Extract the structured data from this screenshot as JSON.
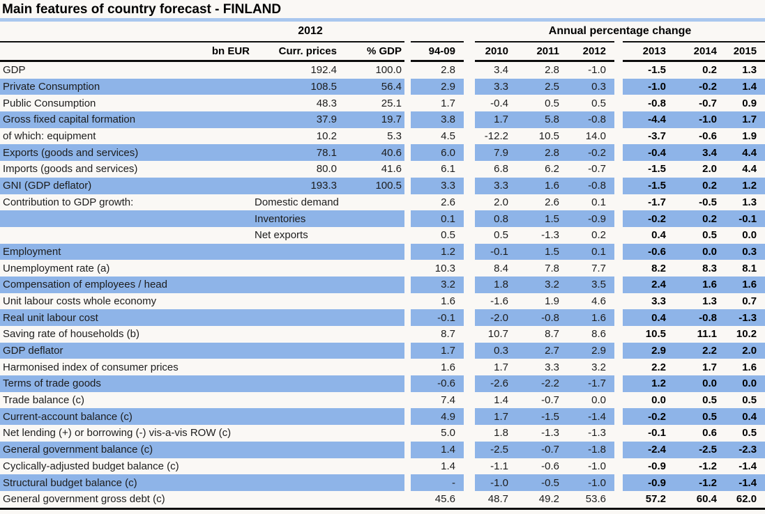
{
  "title": "Main features of country forecast - FINLAND",
  "colors": {
    "stripe_blue": "#8eb4e8",
    "title_rule_blue": "#a9c7ee",
    "rule_black": "#0d0d0d",
    "background": "#faf8f5"
  },
  "header": {
    "group_2012": "2012",
    "group_apc": "Annual percentage change",
    "col_bn_eur": "bn EUR",
    "col_curr_prices": "Curr. prices",
    "col_pct_gdp": "% GDP",
    "col_9409": "94-09",
    "years": [
      "2010",
      "2011",
      "2012",
      "2013",
      "2014",
      "2015"
    ]
  },
  "table": {
    "rows": [
      {
        "label": "GDP",
        "curr": "192.4",
        "gdp": "100.0",
        "v9409": "2.8",
        "y2010": "3.4",
        "y2011": "2.8",
        "y2012": "-1.0",
        "y2013": "-1.5",
        "y2014": "0.2",
        "y2015": "1.3"
      },
      {
        "label": "Private Consumption",
        "curr": "108.5",
        "gdp": "56.4",
        "v9409": "2.9",
        "y2010": "3.3",
        "y2011": "2.5",
        "y2012": "0.3",
        "y2013": "-1.0",
        "y2014": "-0.2",
        "y2015": "1.4"
      },
      {
        "label": "Public Consumption",
        "curr": "48.3",
        "gdp": "25.1",
        "v9409": "1.7",
        "y2010": "-0.4",
        "y2011": "0.5",
        "y2012": "0.5",
        "y2013": "-0.8",
        "y2014": "-0.7",
        "y2015": "0.9"
      },
      {
        "label": "Gross fixed capital formation",
        "curr": "37.9",
        "gdp": "19.7",
        "v9409": "3.8",
        "y2010": "1.7",
        "y2011": "5.8",
        "y2012": "-0.8",
        "y2013": "-4.4",
        "y2014": "-1.0",
        "y2015": "1.7"
      },
      {
        "label": "of which: equipment",
        "curr": "10.2",
        "gdp": "5.3",
        "v9409": "4.5",
        "y2010": "-12.2",
        "y2011": "10.5",
        "y2012": "14.0",
        "y2013": "-3.7",
        "y2014": "-0.6",
        "y2015": "1.9"
      },
      {
        "label": "Exports (goods and services)",
        "curr": "78.1",
        "gdp": "40.6",
        "v9409": "6.0",
        "y2010": "7.9",
        "y2011": "2.8",
        "y2012": "-0.2",
        "y2013": "-0.4",
        "y2014": "3.4",
        "y2015": "4.4"
      },
      {
        "label": "Imports (goods and services)",
        "curr": "80.0",
        "gdp": "41.6",
        "v9409": "6.1",
        "y2010": "6.8",
        "y2011": "6.2",
        "y2012": "-0.7",
        "y2013": "-1.5",
        "y2014": "2.0",
        "y2015": "4.4"
      },
      {
        "label": "GNI (GDP deflator)",
        "curr": "193.3",
        "gdp": "100.5",
        "v9409": "3.3",
        "y2010": "3.3",
        "y2011": "1.6",
        "y2012": "-0.8",
        "y2013": "-1.5",
        "y2014": "0.2",
        "y2015": "1.2"
      },
      {
        "label": "Contribution to GDP growth:",
        "sublabel": "Domestic demand",
        "v9409": "2.6",
        "y2010": "2.0",
        "y2011": "2.6",
        "y2012": "0.1",
        "y2013": "-1.7",
        "y2014": "-0.5",
        "y2015": "1.3"
      },
      {
        "label": "",
        "sublabel": "Inventories",
        "v9409": "0.1",
        "y2010": "0.8",
        "y2011": "1.5",
        "y2012": "-0.9",
        "y2013": "-0.2",
        "y2014": "0.2",
        "y2015": "-0.1"
      },
      {
        "label": "",
        "sublabel": "Net exports",
        "v9409": "0.5",
        "y2010": "0.5",
        "y2011": "-1.3",
        "y2012": "0.2",
        "y2013": "0.4",
        "y2014": "0.5",
        "y2015": "0.0"
      },
      {
        "label": "Employment",
        "curr": "",
        "gdp": "",
        "v9409": "1.2",
        "y2010": "-0.1",
        "y2011": "1.5",
        "y2012": "0.1",
        "y2013": "-0.6",
        "y2014": "0.0",
        "y2015": "0.3"
      },
      {
        "label": "Unemployment rate (a)",
        "curr": "",
        "gdp": "",
        "v9409": "10.3",
        "y2010": "8.4",
        "y2011": "7.8",
        "y2012": "7.7",
        "y2013": "8.2",
        "y2014": "8.3",
        "y2015": "8.1"
      },
      {
        "label": "Compensation of employees / head",
        "curr": "",
        "gdp": "",
        "v9409": "3.2",
        "y2010": "1.8",
        "y2011": "3.2",
        "y2012": "3.5",
        "y2013": "2.4",
        "y2014": "1.6",
        "y2015": "1.6"
      },
      {
        "label": "Unit labour costs whole economy",
        "curr": "",
        "gdp": "",
        "v9409": "1.6",
        "y2010": "-1.6",
        "y2011": "1.9",
        "y2012": "4.6",
        "y2013": "3.3",
        "y2014": "1.3",
        "y2015": "0.7"
      },
      {
        "label": "Real unit labour cost",
        "curr": "",
        "gdp": "",
        "v9409": "-0.1",
        "y2010": "-2.0",
        "y2011": "-0.8",
        "y2012": "1.6",
        "y2013": "0.4",
        "y2014": "-0.8",
        "y2015": "-1.3"
      },
      {
        "label": "Saving rate of households (b)",
        "curr": "",
        "gdp": "",
        "v9409": "8.7",
        "y2010": "10.7",
        "y2011": "8.7",
        "y2012": "8.6",
        "y2013": "10.5",
        "y2014": "11.1",
        "y2015": "10.2"
      },
      {
        "label": "GDP deflator",
        "curr": "",
        "gdp": "",
        "v9409": "1.7",
        "y2010": "0.3",
        "y2011": "2.7",
        "y2012": "2.9",
        "y2013": "2.9",
        "y2014": "2.2",
        "y2015": "2.0"
      },
      {
        "label": "Harmonised index of consumer prices",
        "curr": "",
        "gdp": "",
        "v9409": "1.6",
        "y2010": "1.7",
        "y2011": "3.3",
        "y2012": "3.2",
        "y2013": "2.2",
        "y2014": "1.7",
        "y2015": "1.6"
      },
      {
        "label": "Terms of trade goods",
        "curr": "",
        "gdp": "",
        "v9409": "-0.6",
        "y2010": "-2.6",
        "y2011": "-2.2",
        "y2012": "-1.7",
        "y2013": "1.2",
        "y2014": "0.0",
        "y2015": "0.0"
      },
      {
        "label": "Trade balance (c)",
        "curr": "",
        "gdp": "",
        "v9409": "7.4",
        "y2010": "1.4",
        "y2011": "-0.7",
        "y2012": "0.0",
        "y2013": "0.0",
        "y2014": "0.5",
        "y2015": "0.5"
      },
      {
        "label": "Current-account balance (c)",
        "curr": "",
        "gdp": "",
        "v9409": "4.9",
        "y2010": "1.7",
        "y2011": "-1.5",
        "y2012": "-1.4",
        "y2013": "-0.2",
        "y2014": "0.5",
        "y2015": "0.4"
      },
      {
        "label": "Net lending (+) or borrowing (-) vis-a-vis ROW (c)",
        "curr": "",
        "gdp": "",
        "v9409": "5.0",
        "y2010": "1.8",
        "y2011": "-1.3",
        "y2012": "-1.3",
        "y2013": "-0.1",
        "y2014": "0.6",
        "y2015": "0.5"
      },
      {
        "label": "General government balance (c)",
        "curr": "",
        "gdp": "",
        "v9409": "1.4",
        "y2010": "-2.5",
        "y2011": "-0.7",
        "y2012": "-1.8",
        "y2013": "-2.4",
        "y2014": "-2.5",
        "y2015": "-2.3"
      },
      {
        "label": "Cyclically-adjusted budget balance (c)",
        "curr": "",
        "gdp": "",
        "v9409": "1.4",
        "y2010": "-1.1",
        "y2011": "-0.6",
        "y2012": "-1.0",
        "y2013": "-0.9",
        "y2014": "-1.2",
        "y2015": "-1.4"
      },
      {
        "label": "Structural budget balance (c)",
        "curr": "",
        "gdp": "",
        "v9409": "-",
        "y2010": "-1.0",
        "y2011": "-0.5",
        "y2012": "-1.0",
        "y2013": "-0.9",
        "y2014": "-1.2",
        "y2015": "-1.4"
      },
      {
        "label": "General government gross debt (c)",
        "curr": "",
        "gdp": "",
        "v9409": "45.6",
        "y2010": "48.7",
        "y2011": "49.2",
        "y2012": "53.6",
        "y2013": "57.2",
        "y2014": "60.4",
        "y2015": "62.0"
      }
    ]
  }
}
